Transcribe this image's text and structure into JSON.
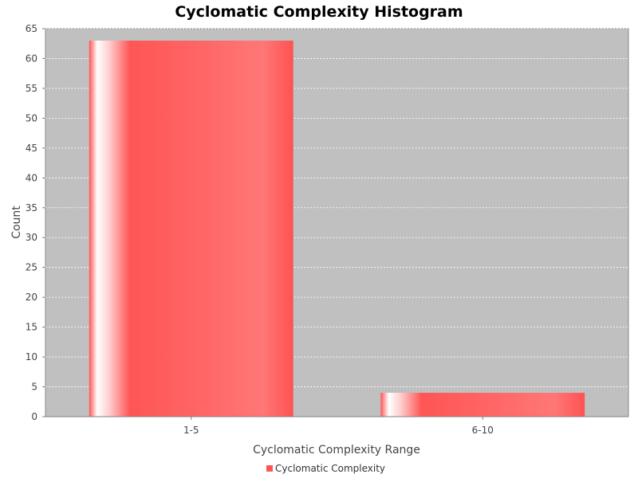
{
  "chart_data": {
    "type": "bar",
    "title": "Cyclomatic Complexity Histogram",
    "xlabel": "Cyclomatic Complexity Range",
    "ylabel": "Count",
    "categories": [
      "1-5",
      "6-10"
    ],
    "series": [
      {
        "name": "Cyclomatic Complexity",
        "values": [
          63,
          4
        ]
      }
    ],
    "ylim": [
      0,
      65
    ],
    "yticks": [
      0,
      5,
      10,
      15,
      20,
      25,
      30,
      35,
      40,
      45,
      50,
      55,
      60,
      65
    ],
    "grid": true,
    "legend": "bottom-center",
    "colors": {
      "bar": "#ff5555",
      "plot_background": "#c0c0c0",
      "gridline": "#ffffff"
    }
  }
}
